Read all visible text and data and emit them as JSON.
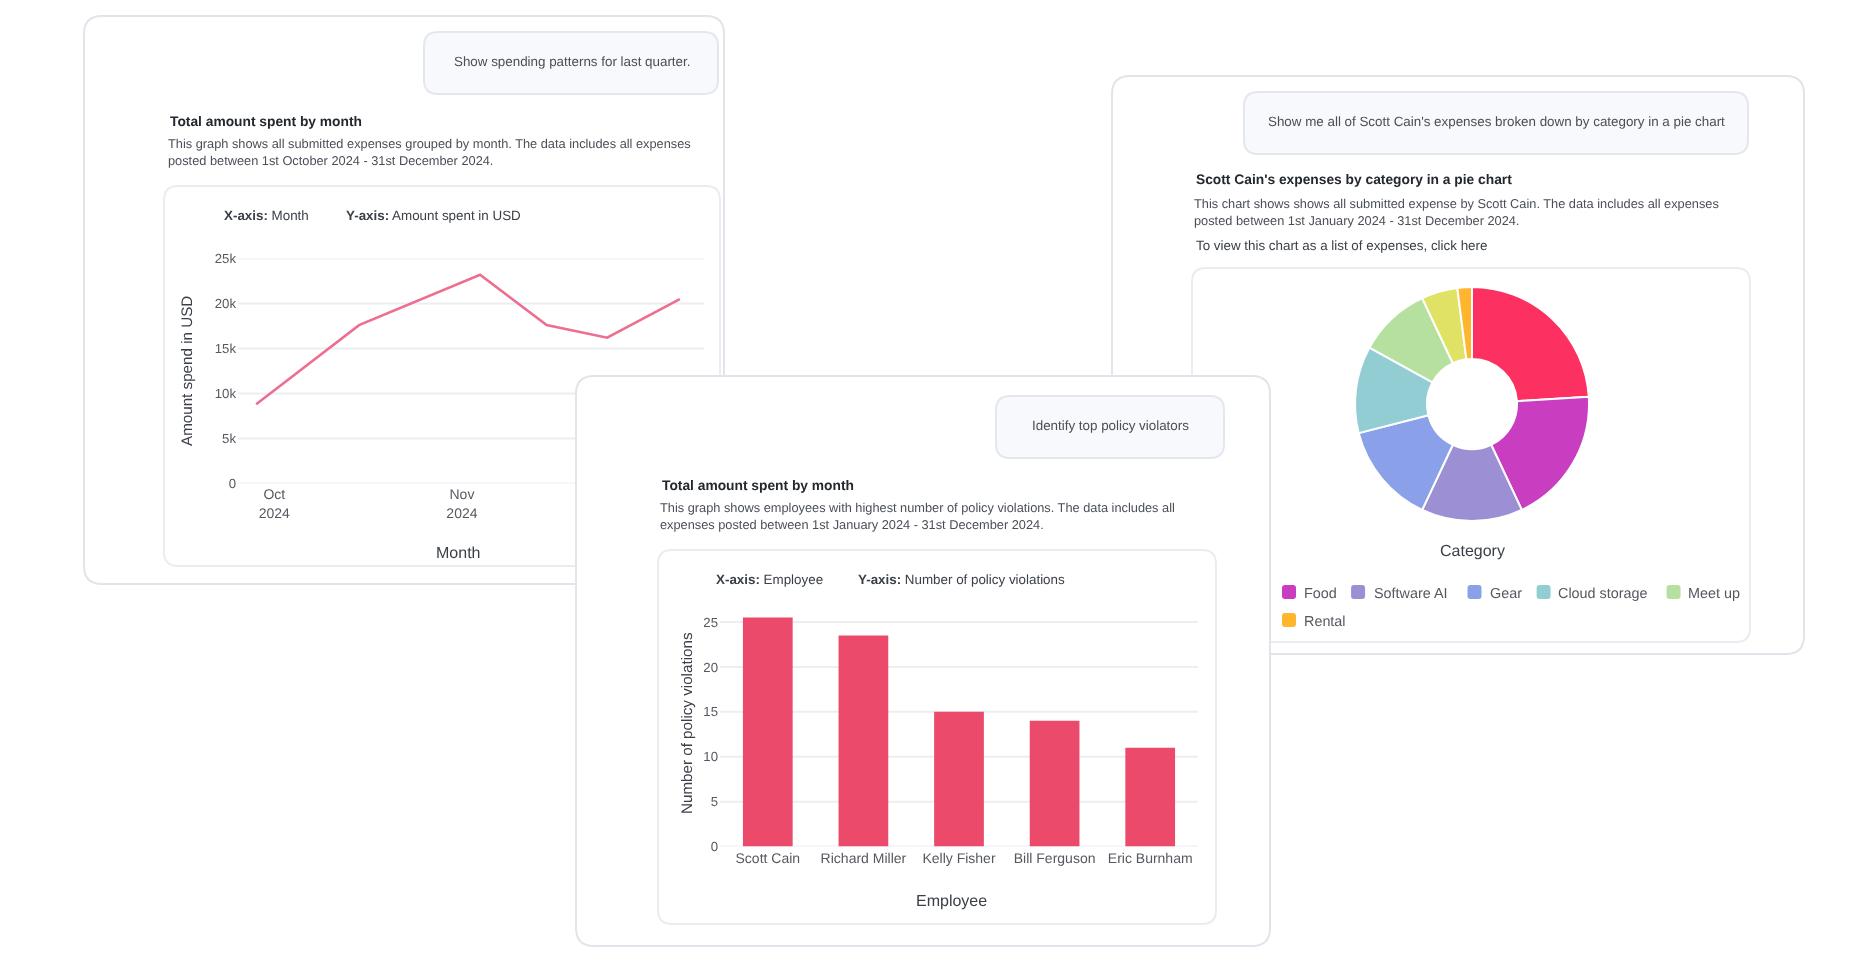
{
  "chart_data": [
    {
      "type": "line",
      "title": "Total amount spent by month",
      "subtitle": "This graph shows all submitted expenses grouped by month. The data includes all expenses posted between 1st October 2024 - 31st December 2024.",
      "annotations": [
        "Show spending patterns for last quarter.",
        "X-axis: Month",
        "Y-axis: Amount spent in USD"
      ],
      "xlabel": "Month",
      "ylabel": "Amount spend in USD",
      "x": [
        "2024-09-28",
        "2024-10-15",
        "2024-11-04",
        "2024-11-15",
        "2024-11-25",
        "2024-12-07"
      ],
      "values": [
        8800,
        17600,
        23200,
        17600,
        16200,
        20500
      ],
      "color": "#ec6f90",
      "xlim": [
        "2024-09-25",
        "2024-12-11"
      ],
      "xticks": [
        {
          "value": "2024-10-01",
          "label": "Oct\n2024"
        },
        {
          "value": "2024-11-01",
          "label": "Nov\n2024"
        }
      ],
      "ylim": [
        0,
        25000
      ],
      "yticks": [
        0,
        {
          "value": 5000,
          "label": "5k"
        },
        {
          "value": 10000,
          "label": "10k"
        },
        {
          "value": 15000,
          "label": "15k"
        },
        {
          "value": 20000,
          "label": "20k"
        },
        {
          "value": 25000,
          "label": "25k"
        }
      ],
      "grid": "y"
    },
    {
      "type": "donut",
      "title": "Scott Cain's expenses by category in a pie chart",
      "subtitle": "This chart shows shows all submitted expense by Scott Cain. The data includes all expenses posted between 1st January 2024 - 31st December 2024.",
      "annotations": [
        "Show me all of Scott Cain's expenses broken down by category in a pie chart",
        "To view this chart as a list of expenses, click here"
      ],
      "legend_title": "Category",
      "legend": "bottom",
      "categories": [
        null,
        "Food",
        "Software AI",
        "Gear",
        "Cloud storage",
        "Meet up",
        null,
        "Rental"
      ],
      "values": [
        24,
        19,
        14,
        14,
        12,
        10,
        5,
        2
      ],
      "colors": [
        "#fd3062",
        "#c93ec1",
        "#9d8fd4",
        "#8aa0e8",
        "#93cdd4",
        "#b5e09f",
        "#e0e265",
        "#ffb52e"
      ]
    },
    {
      "type": "bar",
      "title": "Total amount spent by month",
      "subtitle": "This graph shows employees with highest number of policy violations. The data includes all expenses posted between 1st January 2024 - 31st December 2024.",
      "annotations": [
        "Identify top policy violators",
        "X-axis: Employee",
        "Y-axis: Number of policy violations"
      ],
      "xlabel": "Employee",
      "ylabel": "Number of policy violations",
      "categories": [
        "Scott Cain",
        "Richard Miller",
        "Kelly Fisher",
        "Bill Ferguson",
        "Eric Burnham"
      ],
      "values": [
        25.5,
        23.5,
        15,
        14,
        11
      ],
      "color": "#eb4a6a",
      "ylim": [
        0,
        26
      ],
      "yticks": [
        0,
        5,
        10,
        15,
        20,
        25
      ],
      "grid": "y"
    }
  ]
}
